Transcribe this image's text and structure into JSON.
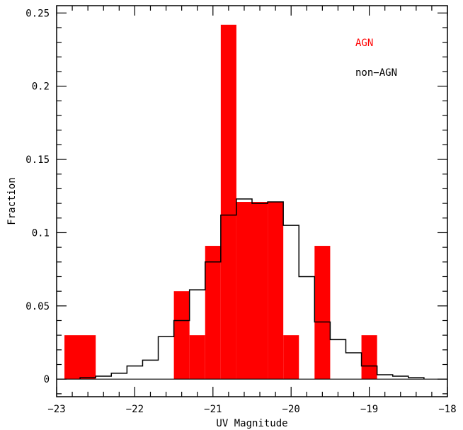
{
  "chart_data": {
    "type": "bar",
    "xlabel": "UV Magnitude",
    "ylabel": "Fraction",
    "xlim": [
      -23,
      -18
    ],
    "ylim": [
      -0.012,
      0.255
    ],
    "xticks": [
      -23,
      -22,
      -21,
      -20,
      -19,
      -18
    ],
    "xtick_labels": [
      "−23",
      "−22",
      "−21",
      "−20",
      "−19",
      "−18"
    ],
    "yticks": [
      0,
      0.05,
      0.1,
      0.15,
      0.2,
      0.25
    ],
    "ytick_labels": [
      "0",
      "0.05",
      "0.1",
      "0.15",
      "0.2",
      "0.25"
    ],
    "legend_position": "top-right",
    "series": [
      {
        "name": "AGN",
        "style": "filled",
        "color": "#ff0000",
        "bins": [
          {
            "x0": -22.9,
            "x1": -22.5,
            "y": 0.03
          },
          {
            "x0": -21.5,
            "x1": -21.3,
            "y": 0.06
          },
          {
            "x0": -21.3,
            "x1": -21.1,
            "y": 0.03
          },
          {
            "x0": -21.1,
            "x1": -20.9,
            "y": 0.091
          },
          {
            "x0": -20.9,
            "x1": -20.7,
            "y": 0.242
          },
          {
            "x0": -20.7,
            "x1": -20.5,
            "y": 0.121
          },
          {
            "x0": -20.5,
            "x1": -20.3,
            "y": 0.121
          },
          {
            "x0": -20.3,
            "x1": -20.1,
            "y": 0.121
          },
          {
            "x0": -20.1,
            "x1": -19.9,
            "y": 0.03
          },
          {
            "x0": -19.7,
            "x1": -19.5,
            "y": 0.091
          },
          {
            "x0": -19.1,
            "x1": -18.9,
            "y": 0.03
          }
        ]
      },
      {
        "name": "non−AGN",
        "style": "step",
        "color": "#000000",
        "edges": [
          -22.7,
          -22.5,
          -22.3,
          -22.1,
          -21.9,
          -21.7,
          -21.5,
          -21.3,
          -21.1,
          -20.9,
          -20.7,
          -20.5,
          -20.3,
          -20.1,
          -19.9,
          -19.7,
          -19.5,
          -19.3,
          -19.1,
          -18.9,
          -18.7,
          -18.5,
          -18.3
        ],
        "values": [
          0.001,
          0.002,
          0.004,
          0.009,
          0.013,
          0.029,
          0.04,
          0.061,
          0.08,
          0.112,
          0.123,
          0.12,
          0.121,
          0.105,
          0.07,
          0.039,
          0.027,
          0.018,
          0.009,
          0.003,
          0.002,
          0.001
        ]
      }
    ]
  }
}
